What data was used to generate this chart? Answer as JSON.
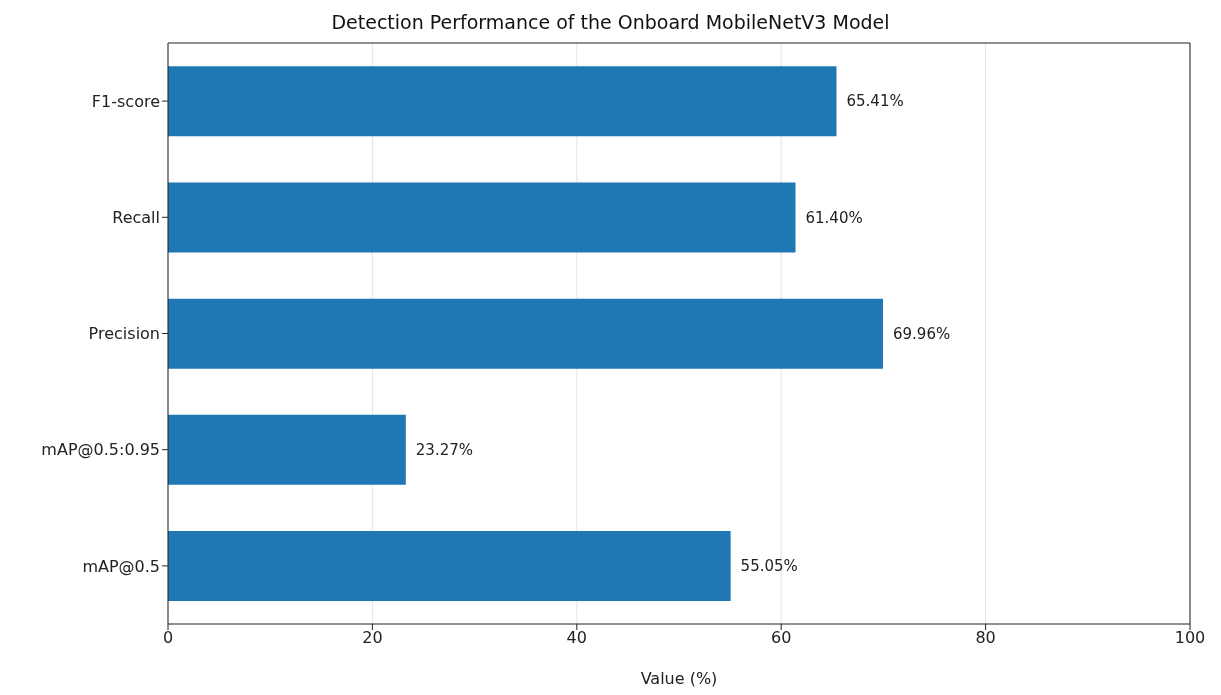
{
  "chart_data": {
    "type": "bar",
    "orientation": "horizontal",
    "title": "Detection Performance of the Onboard MobileNetV3 Model",
    "xlabel": "Value (%)",
    "categories": [
      "F1-score",
      "Recall",
      "Precision",
      "mAP@0.5:0.95",
      "mAP@0.5"
    ],
    "values": [
      65.41,
      61.4,
      69.96,
      23.27,
      55.05
    ],
    "value_labels": [
      "65.41%",
      "61.40%",
      "69.96%",
      "23.27%",
      "55.05%"
    ],
    "color": "#1f77b4",
    "xlim": [
      0,
      100
    ],
    "xticks": [
      0,
      20,
      40,
      60,
      80,
      100
    ],
    "grid": "x"
  }
}
